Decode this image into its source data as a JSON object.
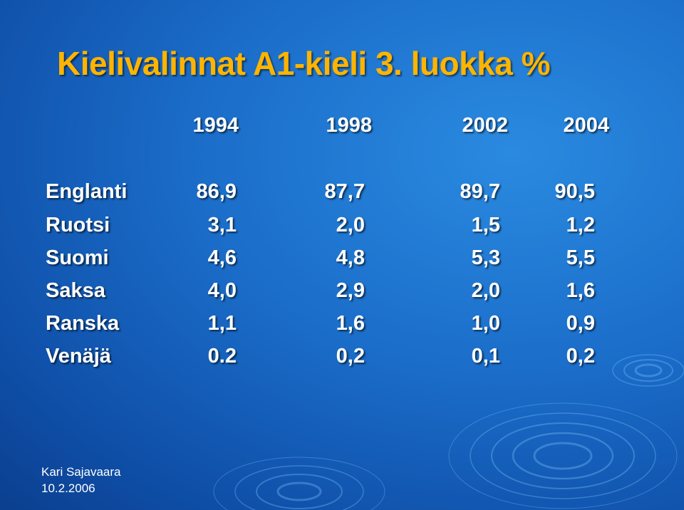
{
  "title": "Kielivalinnat A1-kieli 3. luokka %",
  "years": [
    "1994",
    "1998",
    "2002",
    "2004"
  ],
  "rows": [
    {
      "language": "Englanti",
      "values": [
        "86,9",
        "87,7",
        "89,7",
        "90,5"
      ]
    },
    {
      "language": "Ruotsi",
      "values": [
        "3,1",
        "2,0",
        "1,5",
        "1,2"
      ]
    },
    {
      "language": "Suomi",
      "values": [
        "4,6",
        "4,8",
        "5,3",
        "5,5"
      ]
    },
    {
      "language": "Saksa",
      "values": [
        "4,0",
        "2,9",
        "2,0",
        "1,6"
      ]
    },
    {
      "language": "Ranska",
      "values": [
        "1,1",
        "1,6",
        "1,0",
        "0,9"
      ]
    },
    {
      "language": "Venäjä",
      "values": [
        "0.2",
        "0,2",
        "0,1",
        "0,2"
      ]
    }
  ],
  "footer": {
    "author": "Kari Sajavaara",
    "date": "10.2.2006"
  },
  "colors": {
    "title": "#ffb400",
    "text": "#ffffff",
    "background": "#1a6cc8"
  }
}
